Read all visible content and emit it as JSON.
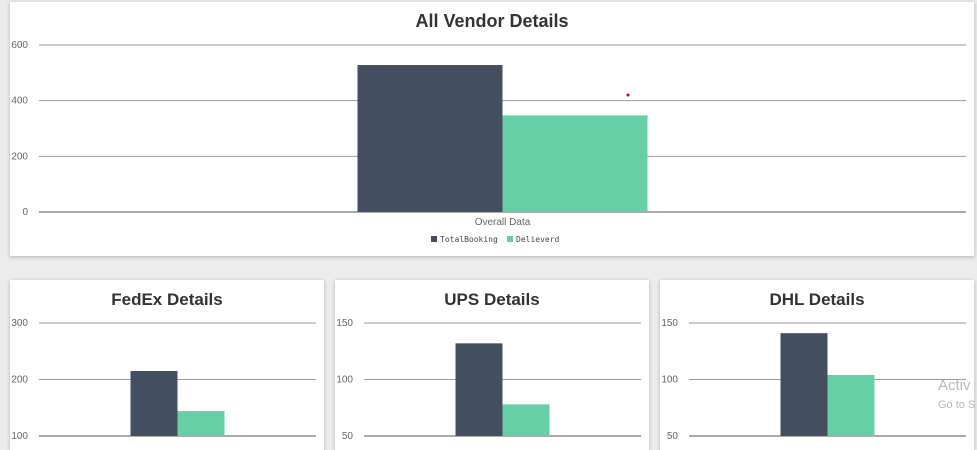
{
  "colors": {
    "total": "#434f61",
    "delivered": "#66cfa6",
    "grid": "#9a9a9a",
    "axis": "#555555",
    "dot": "#e00000"
  },
  "watermark": {
    "line1": "Activ",
    "line2": "Go to S"
  },
  "chart_data": [
    {
      "id": "main",
      "type": "bar",
      "title": "All Vendor Details",
      "categories": [
        "Overall Data"
      ],
      "ylim": [
        0,
        600
      ],
      "yticks": [
        0,
        200,
        400,
        600
      ],
      "series": [
        {
          "name": "TotalBooking",
          "values": [
            528
          ]
        },
        {
          "name": "Delieverd",
          "values": [
            347
          ]
        }
      ],
      "legend": [
        "TotalBooking",
        "Delieverd"
      ]
    },
    {
      "id": "fedex",
      "type": "bar",
      "title": "FedEx Details",
      "categories": [
        ""
      ],
      "ylim": [
        100,
        300
      ],
      "yticks": [
        100,
        200,
        300
      ],
      "series": [
        {
          "name": "TotalBooking",
          "values": [
            215
          ]
        },
        {
          "name": "Delieverd",
          "values": [
            144
          ]
        }
      ]
    },
    {
      "id": "ups",
      "type": "bar",
      "title": "UPS Details",
      "categories": [
        ""
      ],
      "ylim": [
        50,
        150
      ],
      "yticks": [
        50,
        100,
        150
      ],
      "series": [
        {
          "name": "TotalBooking",
          "values": [
            132
          ]
        },
        {
          "name": "Delieverd",
          "values": [
            78
          ]
        }
      ]
    },
    {
      "id": "dhl",
      "type": "bar",
      "title": "DHL Details",
      "categories": [
        ""
      ],
      "ylim": [
        50,
        150
      ],
      "yticks": [
        50,
        100,
        150
      ],
      "series": [
        {
          "name": "TotalBooking",
          "values": [
            141
          ]
        },
        {
          "name": "Delieverd",
          "values": [
            104
          ]
        }
      ]
    }
  ]
}
